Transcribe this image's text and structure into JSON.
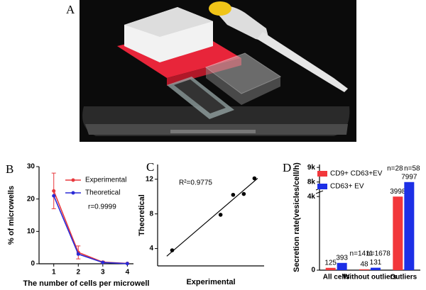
{
  "panel_a": {
    "panel": "A"
  },
  "chart_data": [
    {
      "type": "line",
      "panel": "B",
      "x_label": "The number of cells per microwell",
      "y_label": "% of microwells",
      "annotation": "r=0.9999",
      "x": [
        1,
        2,
        3,
        4
      ],
      "xlim": [
        0.4,
        4.25
      ],
      "xticks": [
        1,
        2,
        3,
        4
      ],
      "ylim": [
        0,
        30
      ],
      "yticks": [
        0,
        10,
        20,
        30
      ],
      "legend": "upper right",
      "series": [
        {
          "name": "Experimental",
          "color": "#e8383d",
          "values": [
            22.5,
            3.5,
            0.5,
            0.1
          ],
          "errors": [
            5.5,
            2,
            0.3,
            0
          ]
        },
        {
          "name": "Theoretical",
          "color": "#2b2bd6",
          "values": [
            21,
            3,
            0.4,
            0.05
          ]
        }
      ]
    },
    {
      "type": "scatter",
      "panel": "C",
      "x_label": "Experimental",
      "y_label": "Theoretical",
      "annotation": "R²=0.9775",
      "x": [
        2.5,
        7.5,
        8.8,
        9.9,
        11
      ],
      "values": [
        3.8,
        7.9,
        10.2,
        10.3,
        12.1
      ],
      "xlim": [
        1,
        12
      ],
      "ylim": [
        2,
        13.7
      ],
      "yticks": [
        4,
        8,
        12
      ],
      "color": "#000000",
      "fit_line": true
    },
    {
      "type": "bar",
      "panel": "D",
      "y_label": "Secretion rate(vesicles/cell/h)",
      "categories": [
        "All cells",
        "Without outliers",
        "Outliers"
      ],
      "ylim": [
        0,
        9200
      ],
      "ybreak": [
        4200,
        7500
      ],
      "yticks": [
        0,
        {
          "value": 4000,
          "label": "4k"
        },
        {
          "value": 8000,
          "label": "8k"
        },
        {
          "value": 9000,
          "label": "9k"
        }
      ],
      "legend": "upper left",
      "series": [
        {
          "name": "CD9+ CD63+EV",
          "color": "#f2373b",
          "values": [
            125,
            48,
            3998
          ],
          "n_labels": [
            null,
            "n=1411",
            "n=28"
          ]
        },
        {
          "name": "CD63+ EV",
          "color": "#1c2fe6",
          "values": [
            393,
            131,
            7997
          ],
          "n_labels": [
            null,
            "n=1678",
            "n=58"
          ]
        }
      ]
    }
  ]
}
